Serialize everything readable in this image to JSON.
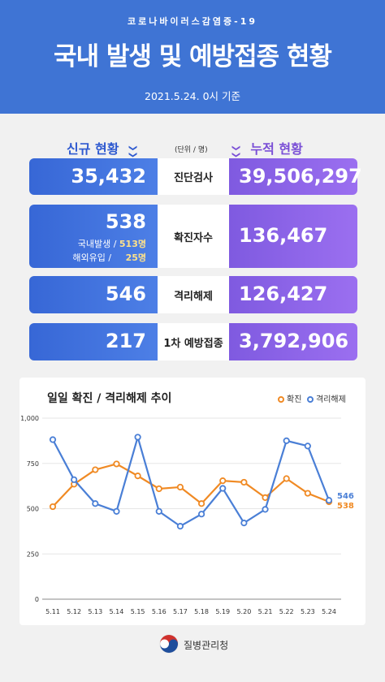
{
  "header": {
    "subtitle": "코로나바이러스감염증-19",
    "title": "국내 발생 및 예방접종 현황",
    "date": "2021.5.24. 0시 기준"
  },
  "sections": {
    "new_label": "신규 현황",
    "cum_label": "누적 현황",
    "unit": "(단위 / 명)",
    "chevron": "❯❯"
  },
  "stats": [
    {
      "label": "진단검사",
      "new": "35,432",
      "cum": "39,506,297"
    },
    {
      "label": "확진자수",
      "new": "538",
      "cum": "136,467",
      "domestic_label": "국내발생 /",
      "domestic_value": "513명",
      "import_label": "해외유입 /",
      "import_value": "25명"
    },
    {
      "label": "격리해제",
      "new": "546",
      "cum": "126,427"
    },
    {
      "label": "1차 예방접종",
      "new": "217",
      "cum": "3,792,906"
    }
  ],
  "chart_data": {
    "type": "line",
    "title": "일일 확진 / 격리해제 추이",
    "categories": [
      "5.11",
      "5.12",
      "5.13",
      "5.14",
      "5.15",
      "5.16",
      "5.17",
      "5.18",
      "5.19",
      "5.20",
      "5.21",
      "5.22",
      "5.23",
      "5.24"
    ],
    "ylim": [
      0,
      1000
    ],
    "yticks": [
      0,
      250,
      500,
      750,
      1000
    ],
    "ytick_labels": [
      "0",
      "250",
      "500",
      "750",
      "1,000"
    ],
    "grid": true,
    "legend_position": "top-right",
    "series": [
      {
        "name": "확진",
        "color": "#f08a24",
        "values": [
          511,
          635,
          715,
          747,
          681,
          610,
          619,
          528,
          654,
          646,
          561,
          666,
          585,
          538
        ]
      },
      {
        "name": "격리해제",
        "color": "#4a7fd6",
        "values": [
          881,
          660,
          528,
          485,
          895,
          485,
          403,
          470,
          612,
          421,
          496,
          875,
          846,
          546
        ]
      }
    ],
    "end_labels": [
      "538",
      "546"
    ]
  },
  "footer": {
    "org": "질병관리청"
  }
}
